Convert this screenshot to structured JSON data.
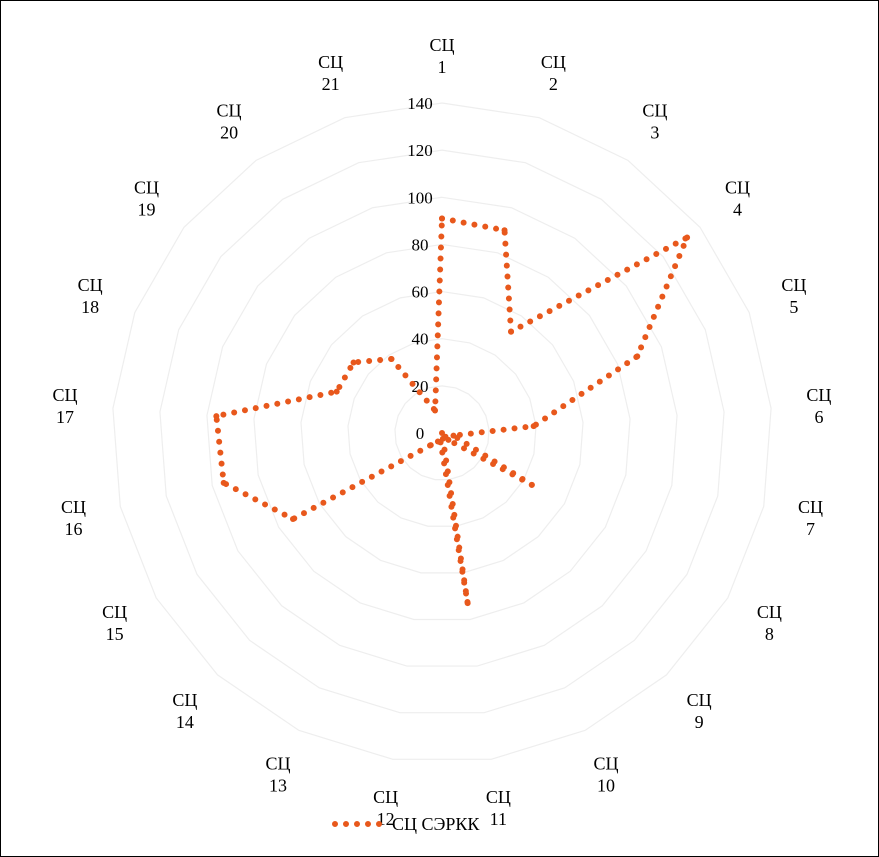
{
  "chart_data": {
    "type": "radar",
    "categories": [
      [
        "СЦ",
        "1"
      ],
      [
        "СЦ",
        "2"
      ],
      [
        "СЦ",
        "3"
      ],
      [
        "СЦ",
        "4"
      ],
      [
        "СЦ",
        "5"
      ],
      [
        "СЦ",
        "6"
      ],
      [
        "СЦ",
        "7"
      ],
      [
        "СЦ",
        "8"
      ],
      [
        "СЦ",
        "9"
      ],
      [
        "СЦ",
        "10"
      ],
      [
        "СЦ",
        "11"
      ],
      [
        "СЦ",
        "12"
      ],
      [
        "СЦ",
        "13"
      ],
      [
        "СЦ",
        "14"
      ],
      [
        "СЦ",
        "15"
      ],
      [
        "СЦ",
        "16"
      ],
      [
        "СЦ",
        "17"
      ],
      [
        "СЦ",
        "18"
      ],
      [
        "СЦ",
        "19"
      ],
      [
        "СЦ",
        "20"
      ],
      [
        "СЦ",
        "21"
      ]
    ],
    "r_ticks": [
      "0",
      "20",
      "40",
      "60",
      "80",
      "100",
      "120",
      "140"
    ],
    "rlim": [
      0,
      140
    ],
    "grid": true,
    "legend_position": "bottom",
    "series": [
      {
        "name": "СЦ СЭРКК",
        "color": "#e8581c",
        "line_style": "dotted",
        "values": [
          91,
          90,
          52,
          133,
          89,
          39,
          5,
          44,
          4,
          0,
          73,
          4,
          4,
          7,
          73,
          95,
          96,
          48,
          48,
          38,
          10
        ]
      }
    ]
  }
}
